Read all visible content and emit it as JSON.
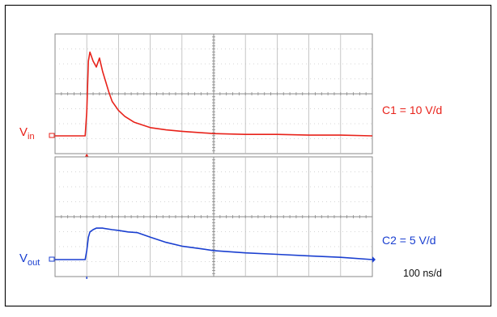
{
  "chart_data": {
    "type": "line",
    "title": "",
    "time_scale": "100 ns/d",
    "x_divisions": 10,
    "y_divisions": 8,
    "channels": [
      {
        "label_main": "V",
        "label_sub": "in",
        "scale": "C1 = 10 V/d",
        "color": "#e8221a",
        "y_unit": "div",
        "x": [
          0.0,
          0.8,
          0.95,
          1.0,
          1.05,
          1.1,
          1.2,
          1.3,
          1.4,
          1.5,
          1.6,
          1.7,
          1.8,
          2.0,
          2.2,
          2.5,
          3.0,
          3.5,
          4.0,
          5.0,
          6.0,
          7.0,
          8.0,
          9.0,
          10.0
        ],
        "y": [
          0.0,
          0.0,
          0.0,
          1.6,
          5.0,
          5.6,
          5.0,
          4.6,
          5.2,
          4.3,
          3.6,
          2.9,
          2.3,
          1.7,
          1.3,
          0.9,
          0.55,
          0.4,
          0.3,
          0.15,
          0.1,
          0.1,
          0.05,
          0.05,
          0.0
        ]
      },
      {
        "label_main": "V",
        "label_sub": "out",
        "scale": "C2 = 5 V/d",
        "color": "#1a3fd0",
        "y_unit": "div",
        "x": [
          0.0,
          0.8,
          0.95,
          1.0,
          1.05,
          1.1,
          1.2,
          1.3,
          1.5,
          1.8,
          2.0,
          2.3,
          2.6,
          3.0,
          3.5,
          4.0,
          4.5,
          5.0,
          6.0,
          7.0,
          8.0,
          9.0,
          10.0
        ],
        "y": [
          0.0,
          0.0,
          0.0,
          0.6,
          1.5,
          1.85,
          2.0,
          2.1,
          2.1,
          2.0,
          1.95,
          1.85,
          1.8,
          1.5,
          1.15,
          0.9,
          0.75,
          0.6,
          0.45,
          0.35,
          0.25,
          0.15,
          0.0
        ]
      }
    ]
  }
}
